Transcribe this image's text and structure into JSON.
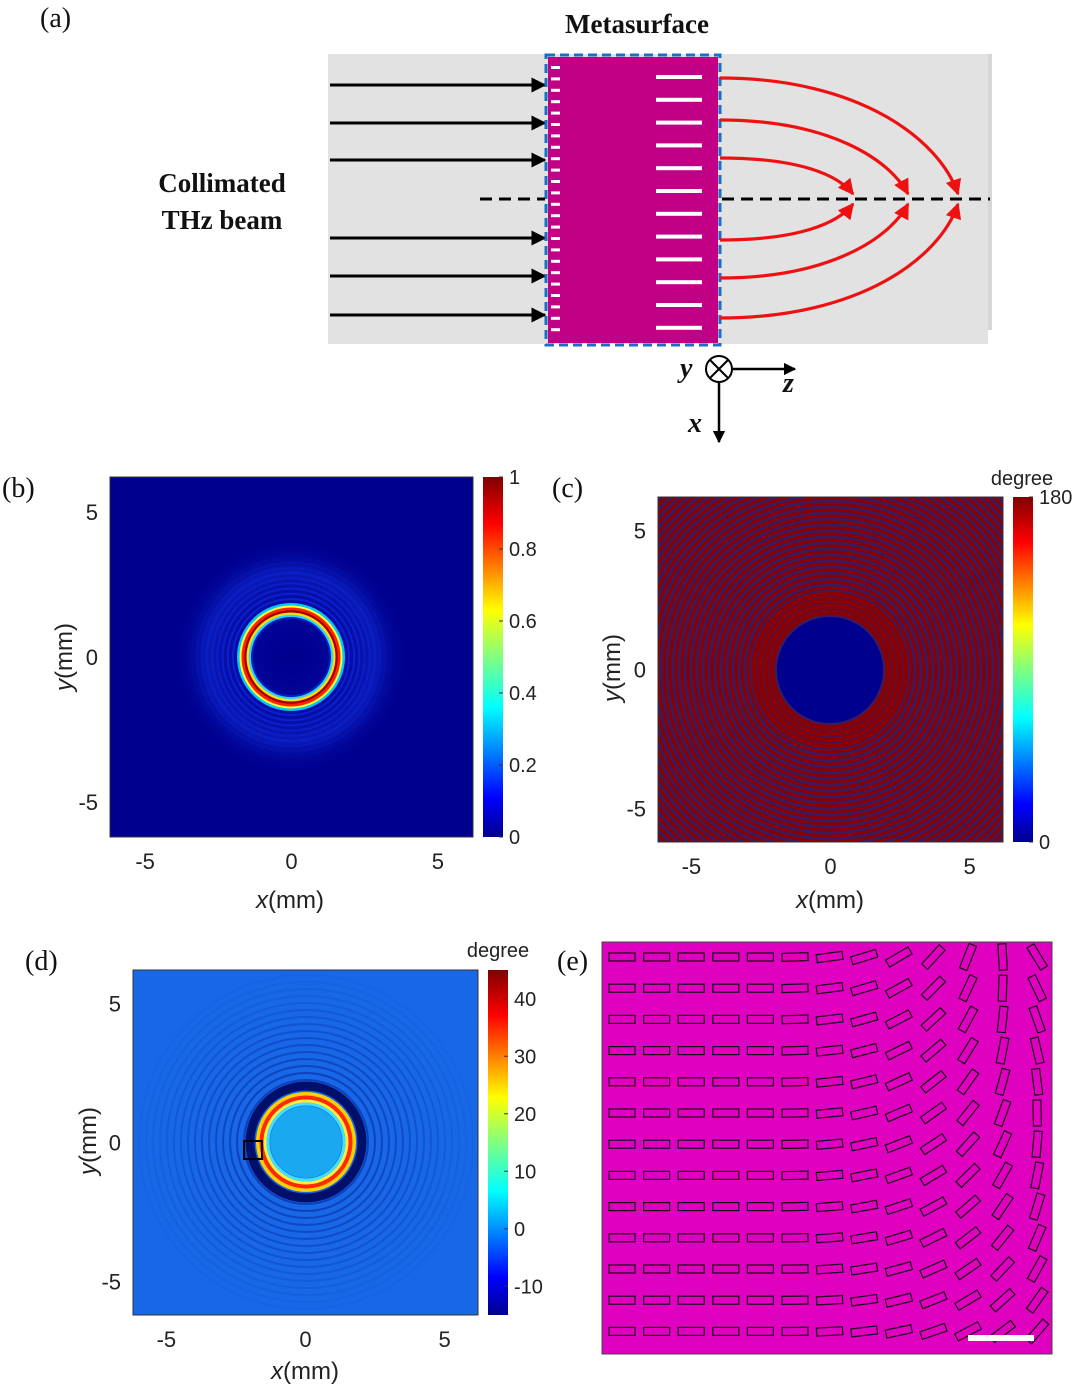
{
  "panel_a": {
    "label": "(a)",
    "metasurface_label": "Metasurface",
    "beam_label_line1": "Collimated",
    "beam_label_line2": "THz beam",
    "axis_y": "y",
    "axis_z": "z",
    "axis_x": "x"
  },
  "panel_b": {
    "label": "(b)",
    "xlabel_var": "x",
    "xlabel_unit": "(mm)",
    "ylabel_var": "y",
    "ylabel_unit": "(mm)",
    "xticks": [
      "-5",
      "0",
      "5"
    ],
    "yticks": [
      "5",
      "0",
      "-5"
    ],
    "colorbar_ticks": [
      "1",
      "0.8",
      "0.6",
      "0.4",
      "0.2",
      "0"
    ],
    "colorbar_unit": ""
  },
  "panel_c": {
    "label": "(c)",
    "xlabel_var": "x",
    "xlabel_unit": "(mm)",
    "ylabel_var": "y",
    "ylabel_unit": "(mm)",
    "xticks": [
      "-5",
      "0",
      "5"
    ],
    "yticks": [
      "5",
      "0",
      "-5"
    ],
    "colorbar_ticks": [
      "180",
      "0"
    ],
    "colorbar_unit": "degree"
  },
  "panel_d": {
    "label": "(d)",
    "xlabel_var": "x",
    "xlabel_unit": "(mm)",
    "ylabel_var": "y",
    "ylabel_unit": "(mm)",
    "xticks": [
      "-5",
      "0",
      "5"
    ],
    "yticks": [
      "5",
      "0",
      "-5"
    ],
    "colorbar_ticks": [
      "40",
      "30",
      "20",
      "10",
      "0",
      "-10"
    ],
    "colorbar_unit": "degree"
  },
  "panel_e": {
    "label": "(e)"
  },
  "chart_data": [
    {
      "type": "heatmap",
      "panel": "(b)",
      "title": "",
      "xlabel": "x(mm)",
      "ylabel": "y(mm)",
      "xlim": [
        -6.2,
        6.2
      ],
      "ylim": [
        -6.2,
        6.2
      ],
      "colorbar_range": [
        0,
        1
      ],
      "colormap": "jet",
      "feature": "bright ring of normalized intensity centred at origin, peak value 1 near radius 1.5 mm, weaker outer rings"
    },
    {
      "type": "heatmap",
      "panel": "(c)",
      "title": "",
      "xlabel": "x(mm)",
      "ylabel": "y(mm)",
      "xlim": [
        -6.2,
        6.2
      ],
      "ylim": [
        -6.2,
        6.2
      ],
      "colorbar_label": "degree",
      "colorbar_range": [
        0,
        180
      ],
      "colormap": "jet",
      "feature": "binary 0/180 degree phase with concentric rings, inner disk radius about 1.6 mm at 0 degree"
    },
    {
      "type": "heatmap",
      "panel": "(d)",
      "title": "",
      "xlabel": "x(mm)",
      "ylabel": "y(mm)",
      "xlim": [
        -6.2,
        6.2
      ],
      "ylim": [
        -6.2,
        6.2
      ],
      "colorbar_label": "degree",
      "colorbar_range": [
        -15,
        45
      ],
      "colormap": "jet",
      "feature": "ring peaking near 45 degree at radius about 1.5 mm, dark ring near -15 degree just outside, background about 0 degree"
    }
  ],
  "colors": {
    "metasurface": "#c20086",
    "unit_cell_bg": "#e000c0",
    "beam_area": "#e2e2e2",
    "incident_arrow": "#000000",
    "focused_ray": "#ee1111",
    "dashed_frame": "#1a6fc4"
  }
}
